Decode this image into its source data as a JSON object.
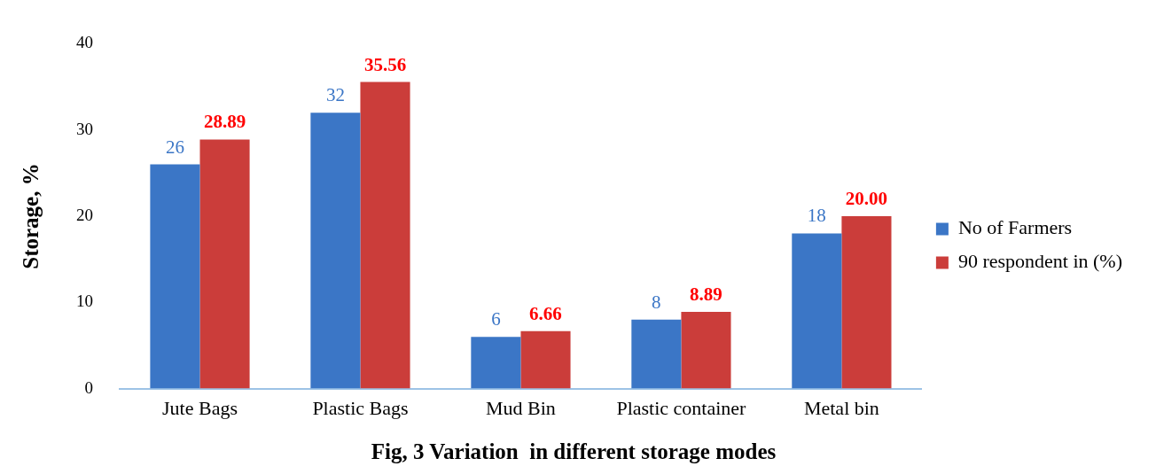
{
  "chart_data": {
    "type": "bar",
    "title": "Fig, 3 Variation  in different storage modes",
    "ylabel": "Storage, %",
    "categories": [
      "Jute Bags",
      "Plastic Bags",
      "Mud Bin",
      "Plastic container",
      "Metal bin"
    ],
    "series": [
      {
        "name": "No of Farmers",
        "color": "#3b76c6",
        "values": [
          26,
          32,
          6,
          8,
          18
        ],
        "value_labels": [
          "26",
          "32",
          "6",
          "8",
          "18"
        ]
      },
      {
        "name": "90 respondent in (%)",
        "color": "#cb3d3a",
        "values": [
          28.89,
          35.56,
          6.66,
          8.89,
          20
        ],
        "value_labels": [
          "28.89",
          "35.56",
          "6.66",
          "8.89",
          "20.00"
        ]
      }
    ],
    "ylim": [
      0,
      40
    ],
    "yticks": [
      0,
      10,
      20,
      30,
      40
    ],
    "grid": false,
    "legend": "right"
  }
}
